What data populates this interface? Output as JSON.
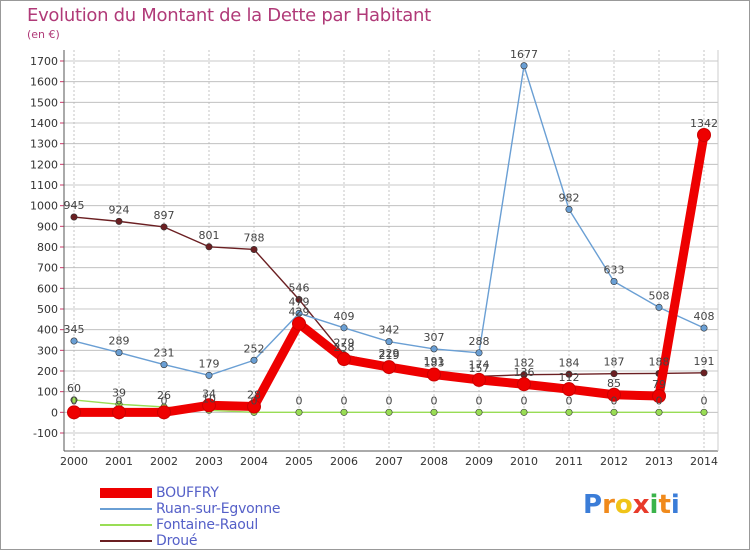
{
  "header": {
    "title": "Evolution du Montant de la Dette par Habitant",
    "unit": "(en €)"
  },
  "logo": {
    "text": "Proxiti",
    "letters": [
      "P",
      "r",
      "o",
      "x",
      "i",
      "t",
      "i"
    ]
  },
  "colors": {
    "title": "#b03a78",
    "grid": "#b7b7b7",
    "axis": "#555555",
    "tick_dash": "#cc3a6a",
    "legend_text": "#5560c8"
  },
  "chart_data": {
    "type": "line",
    "title": "Evolution du Montant de la Dette par Habitant",
    "subtitle": "(en €)",
    "xlabel": "",
    "ylabel": "",
    "x": [
      2000,
      2001,
      2002,
      2003,
      2004,
      2005,
      2006,
      2007,
      2008,
      2009,
      2010,
      2011,
      2012,
      2013,
      2014
    ],
    "ylim": [
      -100,
      1700
    ],
    "yticks": [
      -100,
      0,
      100,
      200,
      300,
      400,
      500,
      600,
      700,
      800,
      900,
      1000,
      1100,
      1200,
      1300,
      1400,
      1500,
      1600,
      1700
    ],
    "grid": true,
    "legend_position": "bottom-left",
    "series": [
      {
        "name": "BOUFFRY",
        "color": "#ee0000",
        "values": [
          0,
          0,
          0,
          34,
          28,
          429,
          258,
          219,
          183,
          157,
          136,
          112,
          85,
          79,
          1342
        ],
        "labels": [
          "0",
          "0",
          "0",
          "34",
          "28",
          "429",
          "258",
          "219",
          "183",
          "157",
          "136",
          "112",
          "85",
          "79",
          "1342"
        ]
      },
      {
        "name": "Ruan-sur-Egvonne",
        "color": "#6a9fd4",
        "values": [
          345,
          289,
          231,
          179,
          252,
          479,
          409,
          342,
          307,
          288,
          1677,
          982,
          633,
          508,
          408
        ],
        "labels": [
          "345",
          "289",
          "231",
          "179",
          "252",
          "479",
          "409",
          "342",
          "307",
          "288",
          "1677",
          "982",
          "633",
          "508",
          "408"
        ]
      },
      {
        "name": "Fontaine-Raoul",
        "color": "#99dd55",
        "values": [
          60,
          39,
          26,
          10,
          0,
          0,
          0,
          0,
          0,
          0,
          0,
          0,
          0,
          0,
          0
        ],
        "labels": [
          "60",
          "39",
          "26",
          "10",
          "0",
          "0",
          "0",
          "0",
          "0",
          "0",
          "0",
          "0",
          "0",
          "0",
          "0"
        ]
      },
      {
        "name": "Droué",
        "color": "#6b1f22",
        "values": [
          945,
          924,
          897,
          801,
          788,
          546,
          279,
          229,
          191,
          174,
          182,
          184,
          187,
          188,
          191
        ],
        "labels": [
          "945",
          "924",
          "897",
          "801",
          "788",
          "546",
          "279",
          "229",
          "191",
          "174",
          "182",
          "184",
          "187",
          "188",
          "191"
        ]
      }
    ]
  }
}
